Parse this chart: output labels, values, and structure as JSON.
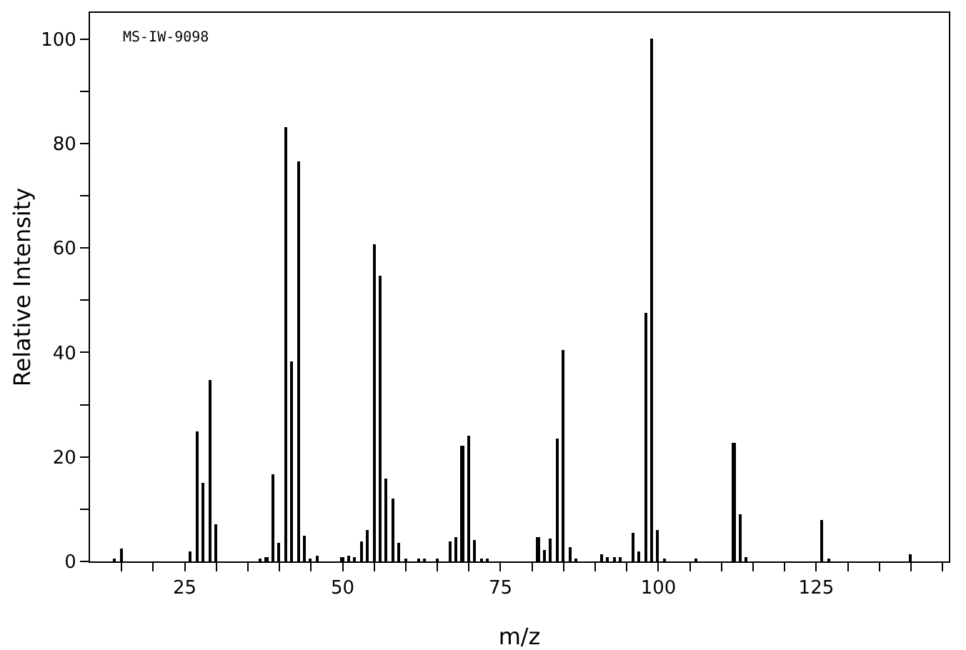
{
  "chart_data": {
    "type": "bar",
    "xlabel": "m/z",
    "ylabel": "Relative Intensity",
    "annotations": [
      "MS-IW-9098"
    ],
    "color": "#000000",
    "x": [
      14,
      15,
      26,
      27,
      28,
      29,
      30,
      37,
      38,
      39,
      40,
      41,
      42,
      43,
      44,
      45,
      46,
      50,
      51,
      52,
      53,
      54,
      55,
      56,
      57,
      58,
      59,
      60,
      62,
      63,
      65,
      67,
      68,
      69,
      70,
      71,
      72,
      73,
      81,
      82,
      83,
      84,
      85,
      86,
      87,
      91,
      92,
      93,
      94,
      96,
      97,
      98,
      99,
      100,
      101,
      106,
      112,
      113,
      114,
      126,
      127,
      140
    ],
    "values": [
      0.4,
      2.5,
      1.8,
      24.9,
      15.1,
      34.7,
      7.2,
      0.5,
      0.9,
      16.7,
      3.6,
      83.0,
      38.3,
      76.5,
      5.0,
      0.5,
      1.2,
      0.8,
      1.2,
      0.8,
      3.9,
      6.1,
      60.7,
      54.7,
      15.9,
      12.1,
      3.6,
      0.5,
      0.4,
      0.4,
      0.4,
      3.9,
      4.7,
      22.2,
      24.1,
      4.2,
      0.6,
      0.6,
      4.7,
      2.3,
      4.4,
      23.5,
      40.5,
      2.8,
      0.5,
      1.3,
      0.9,
      0.7,
      0.9,
      5.5,
      2.0,
      47.6,
      100,
      6.1,
      0.5,
      0.4,
      22.7,
      9.1,
      0.8,
      8.0,
      0.5,
      1.4
    ],
    "xlim": [
      10,
      146
    ],
    "xticks": [
      {
        "value": 15,
        "label": null
      },
      {
        "value": 20,
        "label": null
      },
      25,
      {
        "value": 30,
        "label": null
      },
      {
        "value": 35,
        "label": null
      },
      {
        "value": 40,
        "label": null
      },
      {
        "value": 45,
        "label": null
      },
      50,
      {
        "value": 55,
        "label": null
      },
      {
        "value": 60,
        "label": null
      },
      {
        "value": 65,
        "label": null
      },
      {
        "value": 70,
        "label": null
      },
      75,
      {
        "value": 80,
        "label": null
      },
      {
        "value": 85,
        "label": null
      },
      {
        "value": 90,
        "label": null
      },
      {
        "value": 95,
        "label": null
      },
      100,
      {
        "value": 105,
        "label": null
      },
      {
        "value": 110,
        "label": null
      },
      {
        "value": 115,
        "label": null
      },
      {
        "value": 120,
        "label": null
      },
      125,
      {
        "value": 130,
        "label": null
      },
      {
        "value": 135,
        "label": null
      },
      {
        "value": 140,
        "label": null
      },
      {
        "value": 145,
        "label": null
      }
    ],
    "ylim": [
      0,
      105
    ],
    "yticks": [
      0,
      {
        "value": 10,
        "label": null
      },
      20,
      {
        "value": 30,
        "label": null
      },
      40,
      {
        "value": 50,
        "label": null
      },
      60,
      {
        "value": 70,
        "label": null
      },
      80,
      {
        "value": 90,
        "label": null
      },
      100
    ],
    "grid": false
  }
}
